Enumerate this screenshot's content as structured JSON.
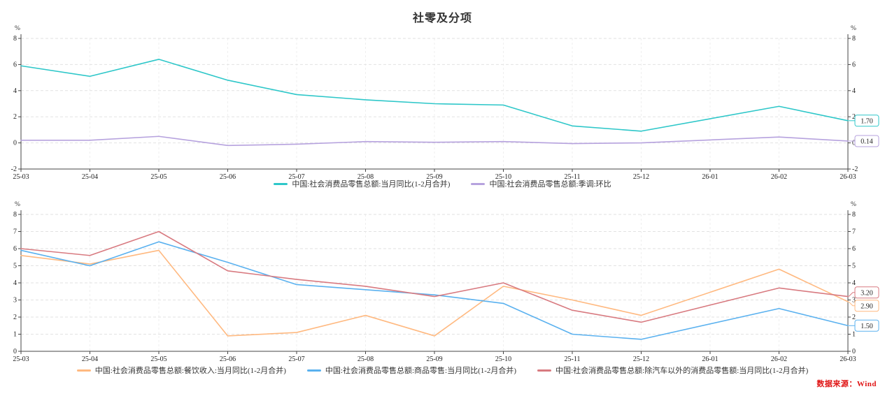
{
  "page": {
    "title": "社零及分项",
    "source_note": "数据来源：Wind"
  },
  "chart_data": [
    {
      "type": "line",
      "unit": "%",
      "grid": true,
      "legend_position": "bottom",
      "categories": [
        "25-03",
        "25-04",
        "25-05",
        "25-06",
        "25-07",
        "25-08",
        "25-09",
        "25-10",
        "25-11",
        "25-12",
        "26-01",
        "26-02",
        "26-03"
      ],
      "ylim": [
        -2,
        8
      ],
      "ytick_step": 2,
      "series": [
        {
          "name": "中国:社会消费品零售总额:当月同比(1-2月合并)",
          "color": "#2ec7c9",
          "values": [
            5.9,
            5.1,
            6.4,
            4.8,
            3.7,
            3.3,
            3.0,
            2.9,
            1.3,
            0.9,
            null,
            2.8,
            1.7
          ],
          "end_label": "1.70"
        },
        {
          "name": "中国:社会消费品零售总额:季调:环比",
          "color": "#b6a2de",
          "values": [
            0.2,
            0.2,
            0.5,
            -0.2,
            -0.1,
            0.1,
            0.05,
            0.1,
            -0.05,
            0,
            null,
            0.45,
            0.14
          ],
          "end_label": "0.14"
        }
      ]
    },
    {
      "type": "line",
      "unit": "%",
      "grid": true,
      "legend_position": "bottom",
      "categories": [
        "25-03",
        "25-04",
        "25-05",
        "25-06",
        "25-07",
        "25-08",
        "25-09",
        "25-10",
        "25-11",
        "25-12",
        "26-01",
        "26-02",
        "26-03"
      ],
      "ylim": [
        0,
        8
      ],
      "ytick_step": 1,
      "series": [
        {
          "name": "中国:社会消费品零售总额:餐饮收入:当月同比(1-2月合并)",
          "color": "#ffb980",
          "values": [
            5.6,
            5.1,
            5.9,
            0.9,
            1.1,
            2.1,
            0.9,
            3.8,
            3.0,
            2.1,
            null,
            4.8,
            2.9
          ],
          "end_label": "2.90"
        },
        {
          "name": "中国:社会消费品零售总额:商品零售:当月同比(1-2月合并)",
          "color": "#5ab1ef",
          "values": [
            5.9,
            5.0,
            6.4,
            5.2,
            3.9,
            3.6,
            3.3,
            2.8,
            1.0,
            0.7,
            null,
            2.5,
            1.5
          ],
          "end_label": "1.50"
        },
        {
          "name": "中国:社会消费品零售总额:除汽车以外的消费品零售额:当月同比(1-2月合并)",
          "color": "#d87a80",
          "values": [
            6.0,
            5.6,
            7.0,
            4.7,
            4.2,
            3.8,
            3.2,
            4.0,
            2.4,
            1.7,
            null,
            3.7,
            3.2
          ],
          "end_label": "3.20"
        }
      ]
    }
  ]
}
